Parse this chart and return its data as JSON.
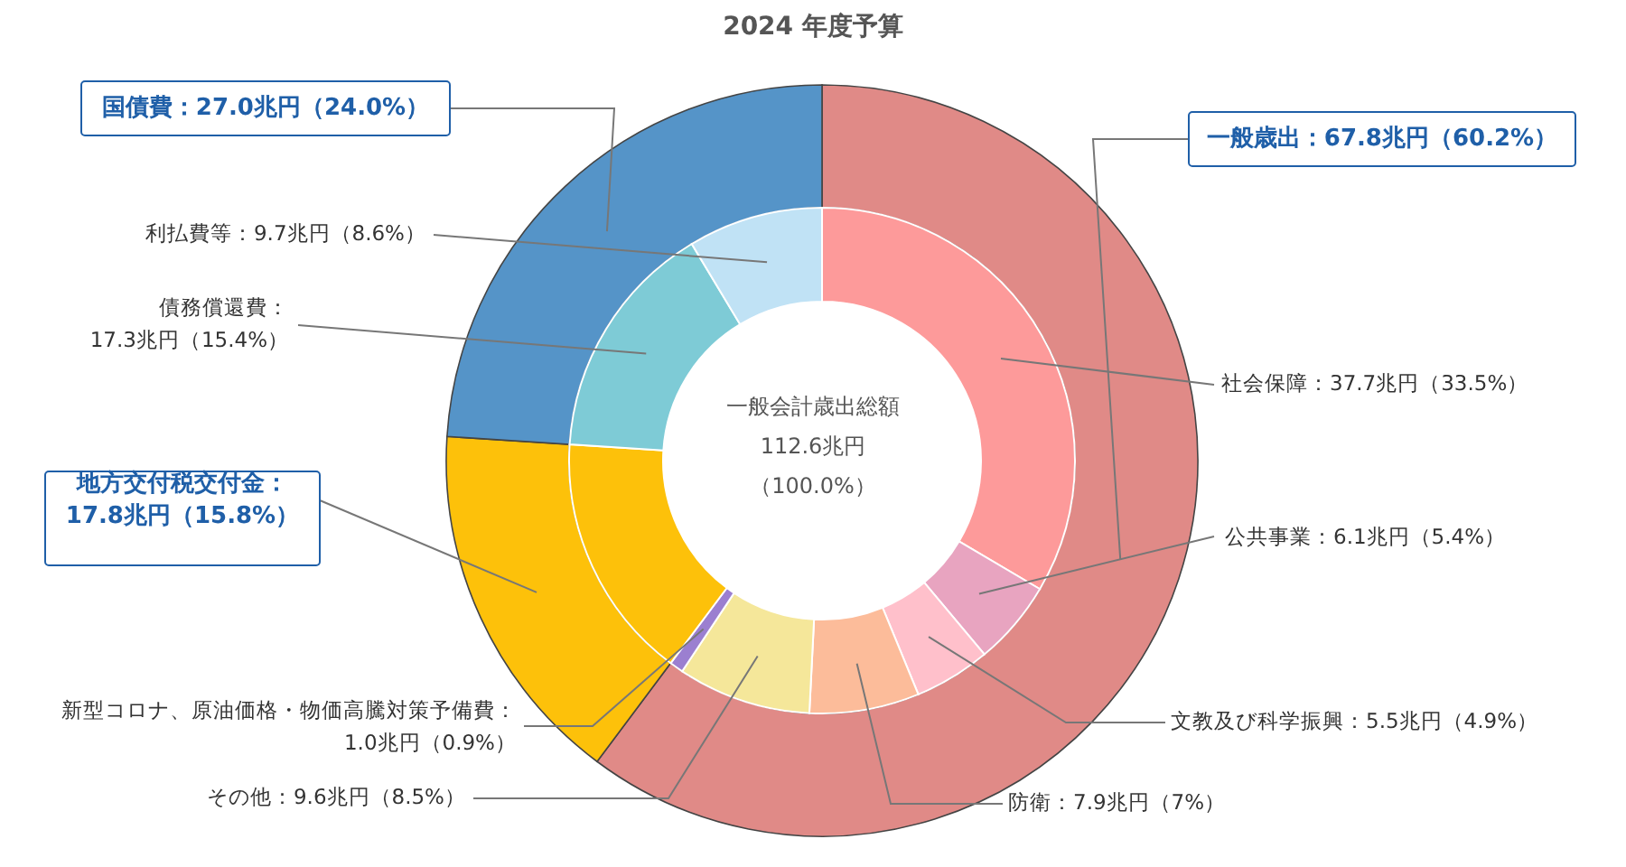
{
  "chart_data": {
    "type": "donut",
    "title": "2024 年度予算",
    "annotations": [
      "一般会計歳出総額",
      "112.6兆円",
      "（100.0%）"
    ],
    "series": [
      {
        "values": [
          67.8,
          17.8,
          27.0
        ],
        "colors": [
          "#e08a87",
          "#fdc10a",
          "#5594c8"
        ],
        "value_labels": [
          "一般歳出：67.8兆円（60.2%）",
          "地方交付税交付金：\n17.8兆円（15.8%）",
          "国債費：27.0兆円（24.0%）"
        ]
      },
      {
        "values": [
          37.7,
          6.1,
          5.5,
          7.9,
          9.6,
          1.0,
          17.8,
          17.3,
          9.7
        ],
        "colors": [
          "#fd9a9a",
          "#e8a4c0",
          "#ffc0cb",
          "#fcbc9a",
          "#f5e79a",
          "#9b7fd0",
          "#fdc10a",
          "#7ecbd6",
          "#c0e2f5"
        ],
        "value_labels": [
          "社会保障：37.7兆円（33.5%）",
          "公共事業：6.1兆円（5.4%）",
          "文教及び科学振興：5.5兆円（4.9%）",
          "防衛：7.9兆円（7%）",
          "その他：9.6兆円（8.5%）",
          "新型コロナ、原油価格・物価高騰対策予備費：\n1.0兆円（0.9%）",
          null,
          "債務償還費：\n17.3兆円（15.4%）",
          "利払費等：9.7兆円（8.6%）"
        ]
      }
    ]
  }
}
